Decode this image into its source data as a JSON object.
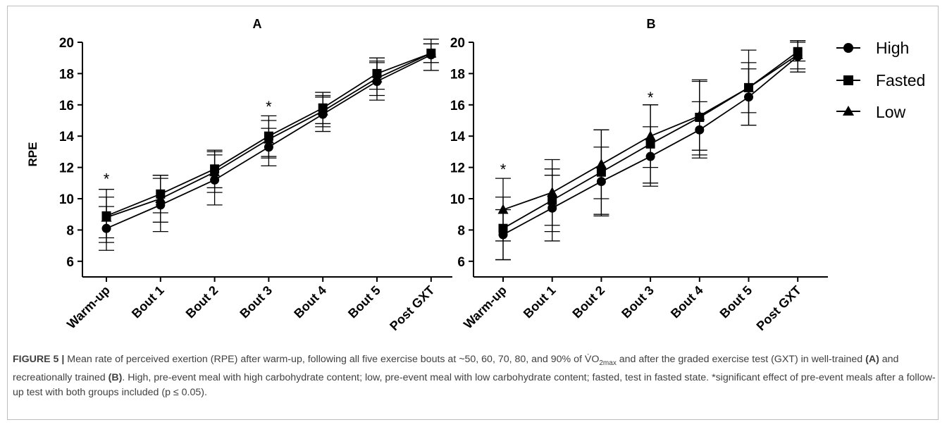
{
  "figure": {
    "caption_label": "FIGURE 5 |",
    "caption_part1": " Mean rate of perceived exertion (RPE) after warm-up, following all five exercise bouts at ~50, 60, 70, 80, and 90% of V̇O",
    "caption_sub": "2max",
    "caption_part2": " and after the graded exercise test (GXT) in well-trained ",
    "caption_a": "(A)",
    "caption_part3": " and recreationally trained ",
    "caption_b": "(B)",
    "caption_part4": ". High, pre-event meal with high carbohydrate content; low, pre-event meal with low carbohydrate content; fasted, test in fasted state. *significant effect of pre-event meals after a follow-up test with both groups included (p ≤ 0.05)."
  },
  "legend": {
    "items": [
      {
        "label": "High",
        "marker": "circle"
      },
      {
        "label": "Fasted",
        "marker": "square"
      },
      {
        "label": "Low",
        "marker": "triangle"
      }
    ]
  },
  "chart_data": [
    {
      "type": "line",
      "title": "A",
      "ylabel": "RPE",
      "xlabel": "",
      "ylim": [
        5,
        20
      ],
      "yticks": [
        6,
        8,
        10,
        12,
        14,
        16,
        18,
        20
      ],
      "categories": [
        "Warm-up",
        "Bout 1",
        "Bout 2",
        "Bout 3",
        "Bout 4",
        "Bout 5",
        "Post GXT"
      ],
      "annotations": [
        {
          "category": "Warm-up",
          "text": "*",
          "y": 11.2
        },
        {
          "category": "Bout 3",
          "text": "*",
          "y": 15.8
        }
      ],
      "series": [
        {
          "name": "High",
          "marker": "circle",
          "values": [
            8.1,
            9.6,
            11.2,
            13.3,
            15.4,
            17.5,
            19.2
          ],
          "err": [
            1.4,
            1.7,
            1.6,
            1.2,
            1.1,
            1.2,
            1.0
          ]
        },
        {
          "name": "Fasted",
          "marker": "square",
          "values": [
            8.9,
            10.3,
            11.9,
            14.0,
            15.8,
            18.0,
            19.3
          ],
          "err": [
            1.7,
            1.2,
            1.2,
            1.3,
            1.0,
            1.0,
            0.6
          ]
        },
        {
          "name": "Low",
          "marker": "triangle",
          "values": [
            8.8,
            10.0,
            11.7,
            13.8,
            15.6,
            17.7,
            19.3
          ],
          "err": [
            1.3,
            1.5,
            1.3,
            1.2,
            1.0,
            1.1,
            0.6
          ]
        }
      ]
    },
    {
      "type": "line",
      "title": "B",
      "ylabel": "",
      "xlabel": "",
      "ylim": [
        5,
        20
      ],
      "yticks": [
        6,
        8,
        10,
        12,
        14,
        16,
        18,
        20
      ],
      "categories": [
        "Warm-up",
        "Bout 1",
        "Bout 2",
        "Bout 3",
        "Bout 4",
        "Bout 5",
        "Post GXT"
      ],
      "annotations": [
        {
          "category": "Warm-up",
          "text": "*",
          "y": 11.8
        },
        {
          "category": "Bout 3",
          "text": "*",
          "y": 16.4
        }
      ],
      "series": [
        {
          "name": "High",
          "marker": "circle",
          "values": [
            7.7,
            9.4,
            11.1,
            12.7,
            14.4,
            16.5,
            19.1
          ],
          "err": [
            1.6,
            2.1,
            2.2,
            1.9,
            1.8,
            1.8,
            1.0
          ]
        },
        {
          "name": "Fasted",
          "marker": "square",
          "values": [
            8.1,
            9.9,
            11.7,
            13.5,
            15.2,
            17.1,
            19.4
          ],
          "err": [
            2.0,
            2.0,
            2.7,
            2.5,
            2.4,
            2.4,
            0.6
          ]
        },
        {
          "name": "Low",
          "marker": "triangle",
          "values": [
            9.3,
            10.4,
            12.2,
            14.0,
            15.3,
            17.1,
            19.2
          ],
          "err": [
            2.0,
            2.1,
            2.2,
            2.0,
            2.2,
            1.6,
            0.9
          ]
        }
      ]
    }
  ]
}
